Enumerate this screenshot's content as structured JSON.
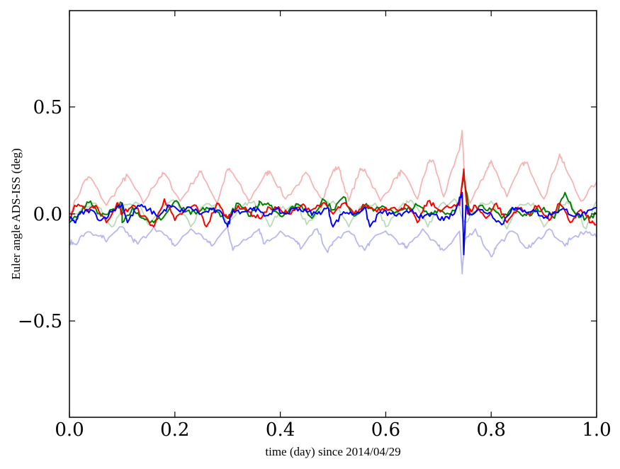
{
  "chart_data": {
    "type": "line",
    "title": "",
    "xlabel": "time (day) since 2014/04/29",
    "ylabel": "Euler angle ADS-ISS (deg)",
    "xlim": [
      0.0,
      1.0
    ],
    "ylim": [
      -0.95,
      0.95
    ],
    "grid": false,
    "x_ticks": [
      0.0,
      0.2,
      0.4,
      0.6,
      0.8,
      1.0
    ],
    "x_tick_labels": [
      "0.0",
      "0.2",
      "0.4",
      "0.6",
      "0.8",
      "1.0"
    ],
    "y_ticks": [
      0.5,
      0.0,
      -0.5
    ],
    "y_tick_labels": [
      "0.5",
      "0.0",
      "−0.5"
    ],
    "series": [
      {
        "name": "red-faded",
        "color": "#f5b5b5",
        "opacity": 1,
        "x": [
          0.0,
          0.03,
          0.04,
          0.07,
          0.1,
          0.11,
          0.14,
          0.17,
          0.18,
          0.21,
          0.24,
          0.25,
          0.28,
          0.3,
          0.31,
          0.34,
          0.37,
          0.38,
          0.41,
          0.44,
          0.45,
          0.48,
          0.5,
          0.51,
          0.53,
          0.55,
          0.56,
          0.59,
          0.62,
          0.63,
          0.66,
          0.68,
          0.69,
          0.71,
          0.74,
          0.745,
          0.75,
          0.76,
          0.79,
          0.8,
          0.83,
          0.86,
          0.87,
          0.9,
          0.93,
          0.94,
          0.97,
          1.0
        ],
        "y": [
          0.0,
          0.16,
          0.17,
          0.04,
          0.15,
          0.18,
          0.05,
          0.17,
          0.19,
          0.06,
          0.17,
          0.2,
          0.05,
          0.21,
          0.19,
          0.06,
          0.18,
          0.2,
          0.07,
          0.16,
          0.19,
          0.07,
          0.2,
          0.22,
          0.06,
          0.2,
          0.21,
          0.06,
          0.17,
          0.2,
          0.07,
          0.24,
          0.25,
          0.08,
          0.3,
          0.39,
          0.12,
          0.05,
          0.2,
          0.25,
          0.08,
          0.24,
          0.23,
          0.07,
          0.28,
          0.22,
          0.06,
          0.15
        ]
      },
      {
        "name": "green-faded",
        "color": "#b8dcb8",
        "opacity": 1,
        "x": [
          0.0,
          0.03,
          0.05,
          0.08,
          0.1,
          0.13,
          0.15,
          0.18,
          0.2,
          0.23,
          0.25,
          0.28,
          0.3,
          0.33,
          0.35,
          0.38,
          0.4,
          0.43,
          0.45,
          0.48,
          0.5,
          0.53,
          0.55,
          0.58,
          0.6,
          0.63,
          0.65,
          0.68,
          0.7,
          0.73,
          0.75,
          0.78,
          0.8,
          0.83,
          0.85,
          0.88,
          0.9,
          0.93,
          0.95,
          0.98,
          1.0
        ],
        "y": [
          -0.02,
          0.04,
          0.05,
          -0.06,
          0.03,
          0.05,
          -0.05,
          0.04,
          0.06,
          -0.06,
          0.03,
          0.05,
          -0.05,
          0.04,
          0.06,
          -0.06,
          0.02,
          0.05,
          -0.05,
          0.04,
          0.06,
          -0.06,
          0.03,
          0.05,
          -0.06,
          0.04,
          0.06,
          -0.06,
          0.03,
          0.07,
          -0.04,
          0.05,
          0.06,
          -0.07,
          0.03,
          0.05,
          -0.06,
          0.04,
          0.06,
          -0.07,
          0.06
        ]
      },
      {
        "name": "blue-faded",
        "color": "#b8b8f0",
        "opacity": 1,
        "x": [
          0.0,
          0.01,
          0.03,
          0.06,
          0.07,
          0.1,
          0.12,
          0.13,
          0.16,
          0.19,
          0.2,
          0.23,
          0.26,
          0.27,
          0.3,
          0.31,
          0.33,
          0.36,
          0.37,
          0.4,
          0.43,
          0.44,
          0.47,
          0.49,
          0.5,
          0.53,
          0.56,
          0.57,
          0.6,
          0.63,
          0.64,
          0.67,
          0.7,
          0.71,
          0.74,
          0.745,
          0.75,
          0.77,
          0.8,
          0.81,
          0.84,
          0.87,
          0.88,
          0.91,
          0.94,
          0.95,
          0.98,
          1.0
        ],
        "y": [
          -0.13,
          -0.14,
          -0.09,
          -0.1,
          -0.13,
          -0.06,
          -0.12,
          -0.14,
          -0.06,
          -0.12,
          -0.15,
          -0.07,
          -0.12,
          -0.15,
          -0.06,
          -0.17,
          -0.12,
          -0.07,
          -0.14,
          -0.08,
          -0.13,
          -0.16,
          -0.07,
          -0.18,
          -0.13,
          -0.08,
          -0.17,
          -0.13,
          -0.08,
          -0.14,
          -0.16,
          -0.07,
          -0.15,
          -0.17,
          -0.08,
          -0.28,
          -0.12,
          -0.07,
          -0.2,
          -0.15,
          -0.08,
          -0.16,
          -0.14,
          -0.07,
          -0.15,
          -0.12,
          -0.08,
          -0.11
        ]
      },
      {
        "name": "green",
        "color": "#008000",
        "opacity": 1,
        "x": [
          0.0,
          0.02,
          0.04,
          0.06,
          0.08,
          0.1,
          0.1,
          0.12,
          0.14,
          0.16,
          0.18,
          0.2,
          0.22,
          0.24,
          0.26,
          0.28,
          0.3,
          0.32,
          0.34,
          0.36,
          0.36,
          0.38,
          0.4,
          0.42,
          0.44,
          0.46,
          0.48,
          0.5,
          0.52,
          0.54,
          0.56,
          0.58,
          0.6,
          0.62,
          0.64,
          0.66,
          0.68,
          0.7,
          0.72,
          0.74,
          0.748,
          0.76,
          0.78,
          0.8,
          0.82,
          0.84,
          0.86,
          0.88,
          0.9,
          0.92,
          0.94,
          0.96,
          0.98,
          1.0
        ],
        "y": [
          -0.04,
          0.01,
          0.06,
          -0.01,
          0.02,
          0.05,
          -0.04,
          0.03,
          -0.02,
          -0.04,
          -0.01,
          0.06,
          0.01,
          0.0,
          0.03,
          0.01,
          -0.02,
          0.05,
          -0.01,
          0.05,
          0.06,
          0.04,
          -0.01,
          0.03,
          0.04,
          -0.02,
          0.07,
          0.02,
          0.08,
          -0.01,
          0.04,
          0.02,
          0.03,
          0.01,
          0.02,
          0.04,
          0.0,
          0.02,
          0.0,
          0.05,
          0.17,
          0.0,
          0.04,
          0.02,
          -0.02,
          0.03,
          -0.01,
          0.01,
          0.03,
          -0.02,
          0.1,
          0.0,
          -0.02,
          0.0
        ]
      },
      {
        "name": "red",
        "color": "#ff0000",
        "opacity": 1,
        "x": [
          0.0,
          0.01,
          0.03,
          0.05,
          0.07,
          0.09,
          0.1,
          0.12,
          0.14,
          0.16,
          0.18,
          0.2,
          0.22,
          0.24,
          0.26,
          0.28,
          0.3,
          0.32,
          0.34,
          0.36,
          0.38,
          0.4,
          0.42,
          0.44,
          0.46,
          0.48,
          0.5,
          0.52,
          0.54,
          0.56,
          0.58,
          0.6,
          0.62,
          0.64,
          0.66,
          0.68,
          0.7,
          0.72,
          0.74,
          0.748,
          0.755,
          0.77,
          0.79,
          0.81,
          0.83,
          0.85,
          0.87,
          0.89,
          0.91,
          0.93,
          0.95,
          0.97,
          0.99,
          1.0
        ],
        "y": [
          -0.03,
          0.04,
          0.02,
          0.04,
          -0.04,
          0.05,
          0.0,
          0.04,
          -0.01,
          -0.06,
          0.07,
          -0.03,
          0.02,
          0.04,
          -0.06,
          0.05,
          -0.02,
          0.04,
          0.01,
          -0.02,
          0.03,
          0.02,
          0.0,
          0.04,
          0.02,
          0.05,
          0.0,
          0.05,
          0.0,
          0.04,
          0.02,
          0.03,
          0.02,
          0.04,
          -0.04,
          0.06,
          0.02,
          0.03,
          0.04,
          0.21,
          0.0,
          0.04,
          -0.02,
          0.05,
          -0.04,
          0.03,
          0.0,
          0.04,
          -0.03,
          0.05,
          -0.04,
          0.02,
          -0.04,
          -0.05
        ]
      },
      {
        "name": "blue",
        "color": "#0000ff",
        "opacity": 1,
        "x": [
          0.0,
          0.01,
          0.02,
          0.04,
          0.06,
          0.08,
          0.1,
          0.11,
          0.13,
          0.15,
          0.17,
          0.19,
          0.21,
          0.23,
          0.25,
          0.27,
          0.29,
          0.3,
          0.31,
          0.33,
          0.35,
          0.37,
          0.39,
          0.41,
          0.43,
          0.45,
          0.47,
          0.49,
          0.5,
          0.52,
          0.54,
          0.56,
          0.57,
          0.59,
          0.61,
          0.63,
          0.65,
          0.67,
          0.69,
          0.71,
          0.73,
          0.745,
          0.748,
          0.752,
          0.76,
          0.78,
          0.8,
          0.82,
          0.84,
          0.86,
          0.88,
          0.9,
          0.92,
          0.94,
          0.96,
          0.98,
          1.0
        ],
        "y": [
          -0.02,
          -0.04,
          0.0,
          0.02,
          -0.03,
          0.01,
          0.05,
          -0.04,
          0.04,
          0.02,
          -0.01,
          0.04,
          0.01,
          0.03,
          0.0,
          0.02,
          0.0,
          -0.06,
          0.02,
          0.01,
          0.03,
          -0.01,
          0.02,
          0.0,
          0.03,
          0.01,
          0.0,
          0.03,
          -0.06,
          0.01,
          0.0,
          0.03,
          -0.06,
          0.01,
          0.0,
          -0.01,
          0.02,
          -0.02,
          0.0,
          -0.03,
          0.0,
          0.1,
          -0.19,
          0.04,
          0.0,
          0.02,
          0.0,
          -0.05,
          0.03,
          0.01,
          0.02,
          -0.02,
          0.01,
          0.02,
          -0.01,
          0.0,
          0.03
        ]
      }
    ]
  }
}
